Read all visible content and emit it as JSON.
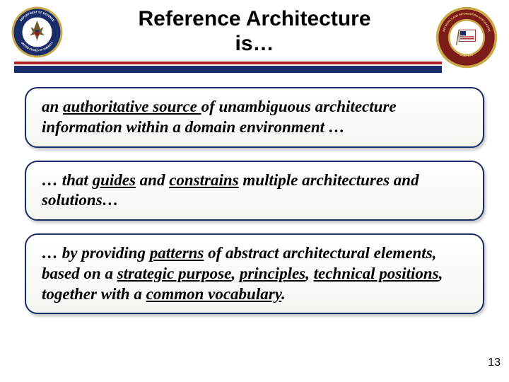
{
  "title_line1": "Reference Architecture",
  "title_line2": "is…",
  "rule_colors": {
    "red": "#b22222",
    "blue": "#1a2d6b"
  },
  "seal_left": {
    "outer_ring": "#1a2d6b",
    "rope": "#c9a94a",
    "inner": "#ffffff",
    "eagle": "#6b5a2e",
    "shield_red": "#9c1a1a",
    "shield_blue": "#1a2d6b",
    "text_top": "DEPARTMENT OF DEFENSE",
    "text_bottom": "UNITED STATES OF AMERICA"
  },
  "seal_right": {
    "outer_ring": "#7d1a1a",
    "gold": "#c9a94a",
    "flag_bg": "#ffffff",
    "flag_accent": "#9c1a1a",
    "text_top": "NETWORKS AND INFORMATION INTEGRATION",
    "text_bottom": "DoD CIO"
  },
  "boxes": [
    {
      "segments": [
        {
          "t": "an ",
          "u": false
        },
        {
          "t": "authoritative source ",
          "u": true
        },
        {
          "t": "of unambiguous architecture information within a domain environment …",
          "u": false
        }
      ]
    },
    {
      "segments": [
        {
          "t": "… that ",
          "u": false
        },
        {
          "t": "guides",
          "u": true
        },
        {
          "t": " and ",
          "u": false
        },
        {
          "t": "constrains",
          "u": true
        },
        {
          "t": " multiple architectures and  solutions…",
          "u": false
        }
      ]
    },
    {
      "segments": [
        {
          "t": " … by providing ",
          "u": false
        },
        {
          "t": "patterns",
          "u": true
        },
        {
          "t": " of abstract architectural elements, based on a ",
          "u": false
        },
        {
          "t": "strategic purpose",
          "u": true
        },
        {
          "t": ", ",
          "u": false
        },
        {
          "t": "principles",
          "u": true
        },
        {
          "t": ", ",
          "u": false
        },
        {
          "t": "technical positions",
          "u": true
        },
        {
          "t": ", together with a ",
          "u": false
        },
        {
          "t": "common vocabulary",
          "u": true
        },
        {
          "t": ".",
          "u": false
        }
      ]
    }
  ],
  "page_number": "13"
}
